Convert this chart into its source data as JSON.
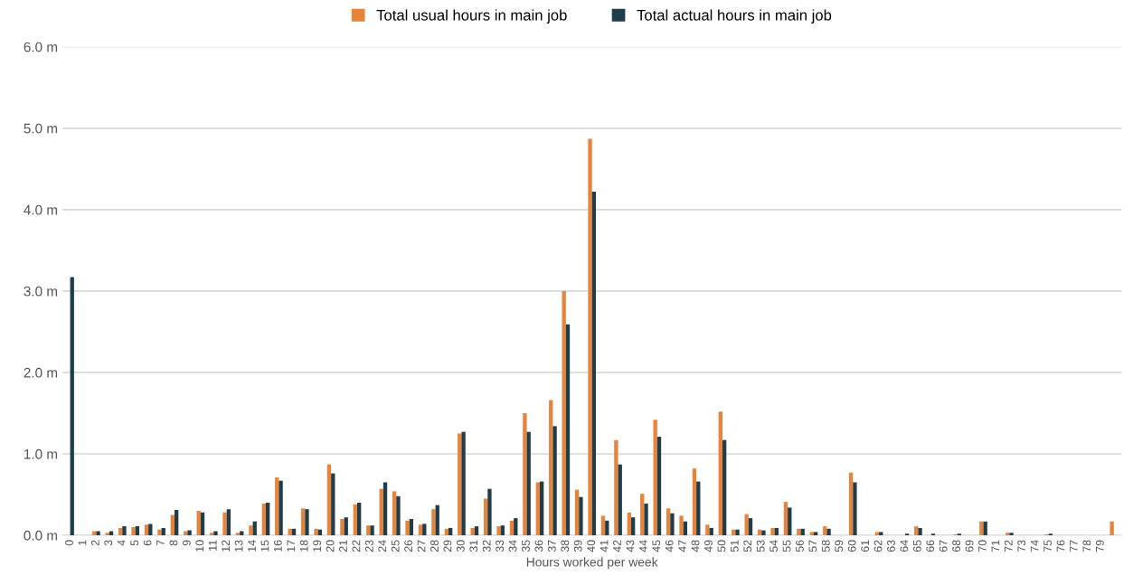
{
  "chart_data": {
    "type": "bar",
    "xlabel": "Hours worked per week",
    "categories": [
      "0",
      "1",
      "2",
      "3",
      "4",
      "5",
      "6",
      "7",
      "8",
      "9",
      "10",
      "11",
      "12",
      "13",
      "14",
      "15",
      "16",
      "17",
      "18",
      "19",
      "20",
      "21",
      "22",
      "23",
      "24",
      "25",
      "26",
      "27",
      "28",
      "29",
      "30",
      "31",
      "32",
      "33",
      "34",
      "35",
      "36",
      "37",
      "38",
      "39",
      "40",
      "41",
      "42",
      "43",
      "44",
      "45",
      "46",
      "47",
      "48",
      "49",
      "50",
      "51",
      "52",
      "53",
      "54",
      "55",
      "56",
      "57",
      "58",
      "59",
      "60",
      "61",
      "62",
      "63",
      "64",
      "65",
      "66",
      "67",
      "68",
      "69",
      "70",
      "71",
      "72",
      "73",
      "74",
      "75",
      "76",
      "77",
      "78",
      "79",
      null
    ],
    "series": [
      {
        "name": "Total usual hours in main job",
        "color": "#e8833a",
        "values": [
          0,
          0,
          0.05,
          0.03,
          0.09,
          0.1,
          0.13,
          0.07,
          0.25,
          0.05,
          0.3,
          0.03,
          0.28,
          0.03,
          0.12,
          0.39,
          0.71,
          0.08,
          0.33,
          0.08,
          0.87,
          0.2,
          0.38,
          0.12,
          0.57,
          0.54,
          0.18,
          0.13,
          0.32,
          0.08,
          1.25,
          0.09,
          0.45,
          0.11,
          0.18,
          1.5,
          0.65,
          1.66,
          3.0,
          0.56,
          4.87,
          0.24,
          1.17,
          0.28,
          0.51,
          1.42,
          0.33,
          0.24,
          0.82,
          0.13,
          1.52,
          0.07,
          0.26,
          0.07,
          0.09,
          0.41,
          0.08,
          0.04,
          0.11,
          0,
          0.77,
          0,
          0.04,
          0,
          0,
          0.11,
          0,
          0,
          0.01,
          0,
          0.17,
          0,
          0.03,
          0,
          0,
          0.01,
          0,
          0,
          0,
          0,
          0.17
        ]
      },
      {
        "name": "Total actual hours in main job",
        "color": "#1f3d4a",
        "values": [
          3.17,
          0,
          0.05,
          0.05,
          0.11,
          0.11,
          0.14,
          0.09,
          0.31,
          0.06,
          0.28,
          0.05,
          0.32,
          0.05,
          0.17,
          0.4,
          0.67,
          0.08,
          0.32,
          0.07,
          0.76,
          0.22,
          0.4,
          0.12,
          0.65,
          0.48,
          0.2,
          0.14,
          0.37,
          0.09,
          1.27,
          0.11,
          0.57,
          0.12,
          0.21,
          1.27,
          0.66,
          1.34,
          2.59,
          0.47,
          4.22,
          0.18,
          0.87,
          0.22,
          0.39,
          1.21,
          0.27,
          0.17,
          0.66,
          0.09,
          1.17,
          0.07,
          0.21,
          0.06,
          0.09,
          0.34,
          0.08,
          0.04,
          0.08,
          0,
          0.65,
          0,
          0.04,
          0,
          0.02,
          0.09,
          0.02,
          0,
          0.02,
          0,
          0.17,
          0,
          0.03,
          0,
          0,
          0.02,
          0,
          0,
          0,
          0,
          null
        ]
      }
    ],
    "ylim": [
      0,
      6.0
    ],
    "yticks": [
      {
        "value": 0,
        "label": "0.0 m"
      },
      {
        "value": 1,
        "label": "1.0 m"
      },
      {
        "value": 2,
        "label": "2.0 m"
      },
      {
        "value": 3,
        "label": "3.0 m"
      },
      {
        "value": 4,
        "label": "4.0 m"
      },
      {
        "value": 5,
        "label": "5.0 m"
      },
      {
        "value": 6,
        "label": "6.0 m"
      }
    ],
    "grid": "y",
    "legend": "top"
  }
}
